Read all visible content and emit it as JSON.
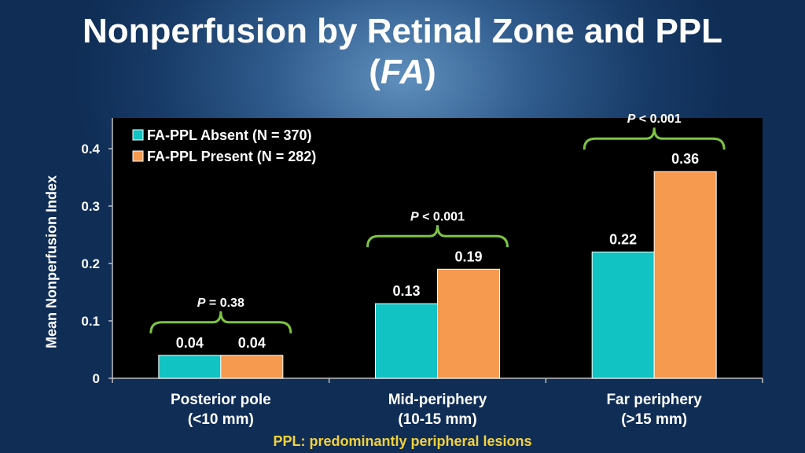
{
  "title": {
    "line1": "Nonperfusion by Retinal Zone and PPL",
    "open": "(",
    "emph": "FA",
    "close": ")"
  },
  "footnote": "PPL: predominantly peripheral lesions",
  "chart_data": {
    "type": "bar",
    "ylabel": "Mean Nonperfusion Index",
    "ylim": [
      0,
      0.45
    ],
    "yticks": [
      "0",
      "0.1",
      "0.2",
      "0.3",
      "0.4"
    ],
    "categories": [
      [
        "Posterior pole",
        "(<10 mm)"
      ],
      [
        "Mid-periphery",
        "(10-15 mm)"
      ],
      [
        "Far periphery",
        "(>15 mm)"
      ]
    ],
    "series": [
      {
        "name": "FA-PPL Absent (N = 370)",
        "color": "#12c3c3",
        "values": [
          0.04,
          0.13,
          0.22
        ],
        "labels": [
          "0.04",
          "0.13",
          "0.22"
        ]
      },
      {
        "name": "FA-PPL Present (N = 282)",
        "color": "#f59a4f",
        "values": [
          0.04,
          0.19,
          0.36
        ],
        "labels": [
          "0.04",
          "0.19",
          "0.36"
        ]
      }
    ],
    "annotations": [
      {
        "p": "P",
        "rest": " = 0.38"
      },
      {
        "p": "P",
        "rest": " < 0.001"
      },
      {
        "p": "P",
        "rest": " < 0.001"
      }
    ],
    "legend": "top-left",
    "grid": false,
    "plot_background": "#000000",
    "bracket_color": "#7ec443"
  }
}
